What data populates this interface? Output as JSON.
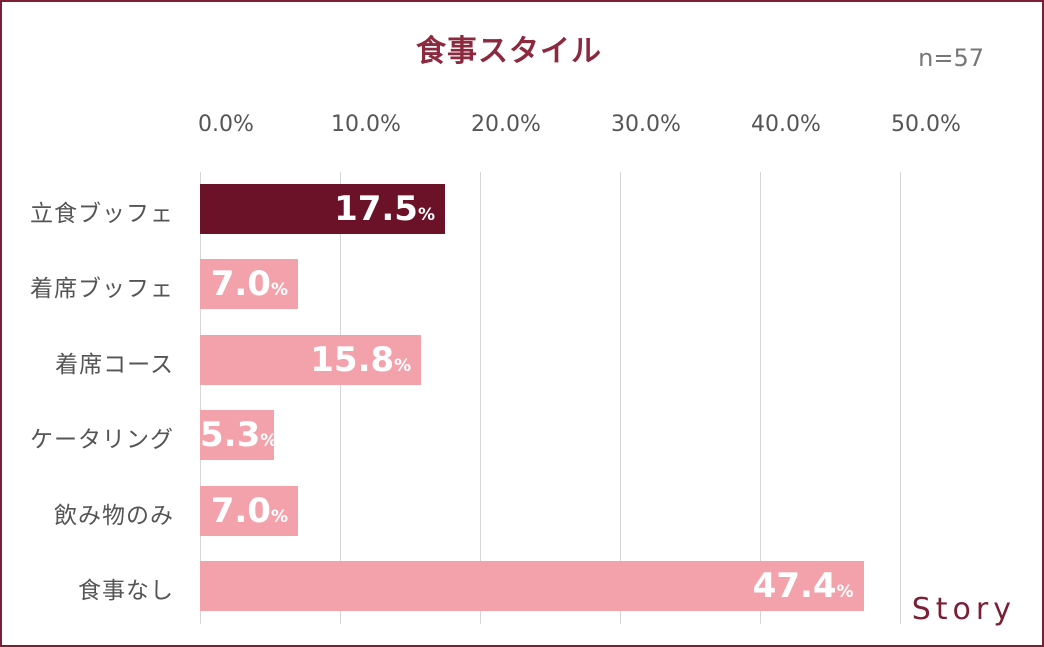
{
  "brand": "Story",
  "sample_size": "n=57",
  "colors": {
    "highlight": "#6b1228",
    "bar": "#f3a2ac",
    "title": "#8b2a3f",
    "frame": "#7a1f35"
  },
  "chart_data": {
    "type": "bar",
    "orientation": "horizontal",
    "title": "食事スタイル",
    "categories": [
      "立食ブッフェ",
      "着席ブッフェ",
      "着席コース",
      "ケータリング",
      "飲み物のみ",
      "食事なし"
    ],
    "values": [
      17.5,
      7.0,
      15.8,
      5.3,
      7.0,
      47.4
    ],
    "value_labels": [
      "17.5",
      "7.0",
      "15.8",
      "5.3",
      "7.0",
      "47.4"
    ],
    "value_unit": "%",
    "highlight_index": 0,
    "xlim": [
      0,
      50
    ],
    "ticks": [
      0,
      10,
      20,
      30,
      40,
      50
    ],
    "tick_labels": [
      "0.0%",
      "10.0%",
      "20.0%",
      "30.0%",
      "40.0%",
      "50.0%"
    ],
    "grid": true
  }
}
